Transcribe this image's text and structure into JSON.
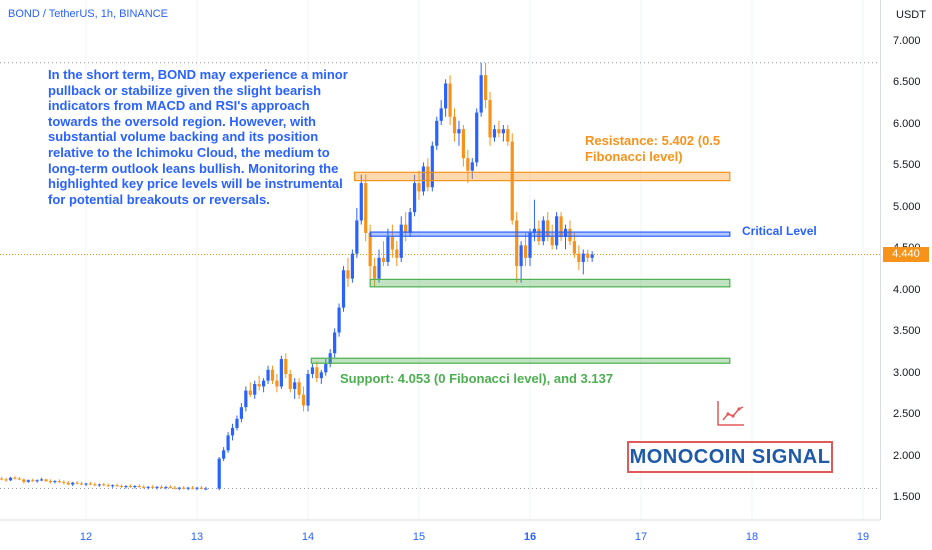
{
  "header": {
    "symbol": "BOND / TetherUS, 1h, BINANCE"
  },
  "commentary": "In the short term, BOND may experience a minor pullback or stabilize given the slight bearish indicators from MACD and RSI's approach towards the oversold region. However, with substantial volume backing and its position relative to the Ichimoku Cloud, the medium to long-term outlook leans bullish. Monitoring the highlighted key price levels will be instrumental for potential breakouts or reversals.",
  "annotations": {
    "resistance": "Resistance: 5.402 (0.5\nFibonacci level)",
    "critical": "Critical Level",
    "support": "Support: 4.053 (0 Fibonacci level), and 3.137"
  },
  "brand": {
    "signal": "MONOCOIN SIGNAL"
  },
  "axis": {
    "currency": "USDT",
    "current_price": "4.440",
    "y_ticks": [
      "7.000",
      "6.500",
      "6.000",
      "5.500",
      "5.000",
      "4.500",
      "4.000",
      "3.500",
      "3.000",
      "2.500",
      "2.000",
      "1.500"
    ],
    "x_ticks": [
      "12",
      "13",
      "14",
      "15",
      "16",
      "17",
      "18",
      "19"
    ]
  },
  "colors": {
    "up": "#2962ff",
    "down": "#f7931a",
    "resistance": "#f7931a",
    "critical": "#2962ff",
    "support": "#4caf50",
    "signal_border": "#e05a5a"
  },
  "chart_data": {
    "type": "candlestick",
    "x_unit": "day",
    "ylim": [
      1.2,
      7.35
    ],
    "xlim": [
      11.2,
      19.3
    ],
    "current_price": 4.44,
    "levels": [
      {
        "kind": "resistance",
        "low": 5.33,
        "high": 5.43,
        "from": 14.42,
        "to": 17.8
      },
      {
        "kind": "critical",
        "low": 4.66,
        "high": 4.71,
        "from": 14.56,
        "to": 17.8
      },
      {
        "kind": "support",
        "low": 4.05,
        "high": 4.14,
        "from": 14.56,
        "to": 17.8
      },
      {
        "kind": "support",
        "low": 3.13,
        "high": 3.19,
        "from": 14.03,
        "to": 17.8
      }
    ],
    "reference_lines": [
      6.75,
      1.62
    ],
    "candles": [
      [
        11.2,
        1.73,
        1.76,
        1.71,
        1.74
      ],
      [
        11.24,
        1.74,
        1.76,
        1.72,
        1.73
      ],
      [
        11.28,
        1.73,
        1.75,
        1.7,
        1.72
      ],
      [
        11.32,
        1.72,
        1.76,
        1.71,
        1.75
      ],
      [
        11.36,
        1.75,
        1.77,
        1.73,
        1.74
      ],
      [
        11.4,
        1.74,
        1.76,
        1.72,
        1.73
      ],
      [
        11.44,
        1.73,
        1.74,
        1.68,
        1.7
      ],
      [
        11.48,
        1.7,
        1.73,
        1.69,
        1.72
      ],
      [
        11.52,
        1.72,
        1.74,
        1.7,
        1.71
      ],
      [
        11.56,
        1.71,
        1.73,
        1.69,
        1.72
      ],
      [
        11.6,
        1.72,
        1.75,
        1.71,
        1.73
      ],
      [
        11.64,
        1.73,
        1.74,
        1.7,
        1.71
      ],
      [
        11.68,
        1.71,
        1.73,
        1.68,
        1.7
      ],
      [
        11.72,
        1.7,
        1.72,
        1.68,
        1.71
      ],
      [
        11.76,
        1.71,
        1.73,
        1.69,
        1.7
      ],
      [
        11.8,
        1.7,
        1.72,
        1.67,
        1.69
      ],
      [
        11.84,
        1.69,
        1.71,
        1.66,
        1.67
      ],
      [
        11.88,
        1.67,
        1.7,
        1.65,
        1.69
      ],
      [
        11.92,
        1.69,
        1.71,
        1.67,
        1.68
      ],
      [
        11.96,
        1.68,
        1.7,
        1.66,
        1.67
      ],
      [
        12.0,
        1.67,
        1.69,
        1.65,
        1.68
      ],
      [
        12.04,
        1.68,
        1.7,
        1.66,
        1.67
      ],
      [
        12.08,
        1.67,
        1.69,
        1.65,
        1.66
      ],
      [
        12.12,
        1.66,
        1.68,
        1.64,
        1.67
      ],
      [
        12.16,
        1.67,
        1.69,
        1.65,
        1.66
      ],
      [
        12.2,
        1.66,
        1.68,
        1.64,
        1.65
      ],
      [
        12.24,
        1.65,
        1.67,
        1.63,
        1.66
      ],
      [
        12.28,
        1.66,
        1.68,
        1.64,
        1.65
      ],
      [
        12.32,
        1.65,
        1.67,
        1.63,
        1.64
      ],
      [
        12.36,
        1.64,
        1.66,
        1.62,
        1.65
      ],
      [
        12.4,
        1.65,
        1.67,
        1.63,
        1.64
      ],
      [
        12.44,
        1.64,
        1.66,
        1.62,
        1.65
      ],
      [
        12.48,
        1.65,
        1.67,
        1.63,
        1.64
      ],
      [
        12.52,
        1.64,
        1.66,
        1.62,
        1.63
      ],
      [
        12.56,
        1.63,
        1.65,
        1.61,
        1.64
      ],
      [
        12.6,
        1.64,
        1.66,
        1.62,
        1.63
      ],
      [
        12.64,
        1.63,
        1.65,
        1.61,
        1.64
      ],
      [
        12.68,
        1.64,
        1.66,
        1.62,
        1.63
      ],
      [
        12.72,
        1.63,
        1.65,
        1.61,
        1.64
      ],
      [
        12.76,
        1.64,
        1.66,
        1.62,
        1.63
      ],
      [
        12.8,
        1.63,
        1.65,
        1.61,
        1.62
      ],
      [
        12.84,
        1.62,
        1.64,
        1.6,
        1.63
      ],
      [
        12.88,
        1.63,
        1.65,
        1.61,
        1.62
      ],
      [
        12.92,
        1.62,
        1.64,
        1.6,
        1.63
      ],
      [
        12.96,
        1.63,
        1.65,
        1.61,
        1.62
      ],
      [
        13.0,
        1.62,
        1.64,
        1.6,
        1.63
      ],
      [
        13.04,
        1.63,
        1.65,
        1.61,
        1.62
      ],
      [
        13.08,
        1.62,
        1.64,
        1.6,
        1.62
      ],
      [
        13.2,
        1.62,
        2.0,
        1.6,
        1.98
      ],
      [
        13.24,
        1.98,
        2.12,
        1.95,
        2.08
      ],
      [
        13.28,
        2.08,
        2.3,
        2.05,
        2.26
      ],
      [
        13.32,
        2.26,
        2.4,
        2.2,
        2.35
      ],
      [
        13.36,
        2.35,
        2.5,
        2.32,
        2.46
      ],
      [
        13.4,
        2.46,
        2.65,
        2.42,
        2.6
      ],
      [
        13.44,
        2.6,
        2.85,
        2.55,
        2.8
      ],
      [
        13.48,
        2.8,
        2.9,
        2.72,
        2.75
      ],
      [
        13.52,
        2.75,
        2.92,
        2.7,
        2.88
      ],
      [
        13.56,
        2.88,
        2.98,
        2.8,
        2.85
      ],
      [
        13.6,
        2.85,
        2.95,
        2.78,
        2.92
      ],
      [
        13.64,
        2.92,
        3.1,
        2.88,
        3.05
      ],
      [
        13.68,
        3.05,
        3.1,
        2.88,
        2.92
      ],
      [
        13.72,
        2.92,
        3.0,
        2.78,
        2.85
      ],
      [
        13.76,
        2.85,
        3.22,
        2.82,
        3.18
      ],
      [
        13.8,
        3.18,
        3.25,
        2.95,
        3.0
      ],
      [
        13.84,
        3.0,
        3.05,
        2.78,
        2.82
      ],
      [
        13.88,
        2.82,
        2.95,
        2.7,
        2.9
      ],
      [
        13.92,
        2.9,
        2.95,
        2.7,
        2.75
      ],
      [
        13.96,
        2.75,
        2.85,
        2.55,
        2.62
      ],
      [
        14.0,
        2.62,
        3.05,
        2.55,
        3.0
      ],
      [
        14.04,
        3.0,
        3.12,
        2.95,
        3.08
      ],
      [
        14.08,
        3.08,
        3.15,
        2.9,
        2.95
      ],
      [
        14.12,
        2.95,
        3.05,
        2.88,
        3.02
      ],
      [
        14.16,
        3.02,
        3.18,
        2.98,
        3.12
      ],
      [
        14.2,
        3.12,
        3.3,
        3.08,
        3.25
      ],
      [
        14.24,
        3.25,
        3.55,
        3.2,
        3.5
      ],
      [
        14.28,
        3.5,
        3.85,
        3.45,
        3.8
      ],
      [
        14.32,
        3.8,
        4.3,
        3.75,
        4.25
      ],
      [
        14.36,
        4.25,
        4.4,
        4.05,
        4.15
      ],
      [
        14.4,
        4.15,
        4.5,
        4.1,
        4.45
      ],
      [
        14.44,
        4.45,
        5.0,
        4.4,
        4.85
      ],
      [
        14.48,
        4.85,
        5.4,
        4.8,
        5.3
      ],
      [
        14.52,
        5.3,
        5.4,
        4.6,
        4.7
      ],
      [
        14.56,
        4.7,
        4.8,
        4.15,
        4.3
      ],
      [
        14.6,
        4.3,
        4.4,
        4.05,
        4.15
      ],
      [
        14.64,
        4.15,
        4.5,
        4.1,
        4.4
      ],
      [
        14.68,
        4.4,
        4.6,
        4.3,
        4.35
      ],
      [
        14.72,
        4.35,
        4.75,
        4.3,
        4.65
      ],
      [
        14.76,
        4.65,
        4.8,
        4.4,
        4.5
      ],
      [
        14.8,
        4.5,
        4.6,
        4.3,
        4.4
      ],
      [
        14.84,
        4.4,
        4.9,
        4.35,
        4.8
      ],
      [
        14.88,
        4.8,
        4.95,
        4.6,
        4.7
      ],
      [
        14.92,
        4.7,
        5.0,
        4.65,
        4.95
      ],
      [
        14.96,
        4.95,
        5.4,
        4.9,
        5.3
      ],
      [
        15.0,
        5.3,
        5.45,
        5.1,
        5.2
      ],
      [
        15.04,
        5.2,
        5.55,
        5.15,
        5.5
      ],
      [
        15.08,
        5.5,
        5.6,
        5.2,
        5.25
      ],
      [
        15.12,
        5.25,
        5.8,
        5.2,
        5.75
      ],
      [
        15.16,
        5.75,
        6.1,
        5.7,
        6.05
      ],
      [
        15.2,
        6.05,
        6.3,
        6.0,
        6.2
      ],
      [
        15.24,
        6.2,
        6.55,
        6.1,
        6.5
      ],
      [
        15.28,
        6.5,
        6.6,
        6.0,
        6.1
      ],
      [
        15.32,
        6.1,
        6.2,
        5.8,
        5.9
      ],
      [
        15.36,
        5.9,
        6.05,
        5.75,
        5.95
      ],
      [
        15.4,
        5.95,
        6.0,
        5.5,
        5.6
      ],
      [
        15.44,
        5.6,
        5.7,
        5.3,
        5.45
      ],
      [
        15.48,
        5.45,
        5.6,
        5.35,
        5.55
      ],
      [
        15.52,
        5.55,
        6.2,
        5.5,
        6.15
      ],
      [
        15.56,
        6.15,
        6.75,
        6.1,
        6.6
      ],
      [
        15.6,
        6.6,
        6.75,
        6.2,
        6.3
      ],
      [
        15.64,
        6.3,
        6.4,
        5.75,
        5.85
      ],
      [
        15.68,
        5.85,
        6.0,
        5.8,
        5.95
      ],
      [
        15.72,
        5.95,
        6.05,
        5.85,
        5.9
      ],
      [
        15.76,
        5.9,
        6.0,
        5.8,
        5.95
      ],
      [
        15.8,
        5.95,
        6.0,
        5.75,
        5.8
      ],
      [
        15.84,
        5.8,
        5.9,
        4.8,
        4.85
      ],
      [
        15.88,
        4.85,
        4.95,
        4.1,
        4.3
      ],
      [
        15.92,
        4.3,
        4.6,
        4.1,
        4.55
      ],
      [
        15.96,
        4.55,
        4.7,
        4.3,
        4.4
      ],
      [
        16.0,
        4.4,
        4.75,
        4.3,
        4.7
      ],
      [
        16.04,
        4.7,
        5.1,
        4.6,
        4.75
      ],
      [
        16.08,
        4.75,
        4.85,
        4.55,
        4.6
      ],
      [
        16.12,
        4.6,
        4.9,
        4.55,
        4.85
      ],
      [
        16.16,
        4.85,
        4.95,
        4.6,
        4.65
      ],
      [
        16.2,
        4.65,
        4.8,
        4.5,
        4.55
      ],
      [
        16.24,
        4.55,
        4.95,
        4.5,
        4.9
      ],
      [
        16.28,
        4.9,
        4.95,
        4.6,
        4.65
      ],
      [
        16.32,
        4.65,
        4.8,
        4.5,
        4.75
      ],
      [
        16.36,
        4.75,
        4.85,
        4.55,
        4.6
      ],
      [
        16.4,
        4.6,
        4.7,
        4.4,
        4.45
      ],
      [
        16.44,
        4.45,
        4.55,
        4.25,
        4.35
      ],
      [
        16.48,
        4.35,
        4.5,
        4.2,
        4.45
      ],
      [
        16.52,
        4.45,
        4.5,
        4.35,
        4.4
      ],
      [
        16.56,
        4.4,
        4.48,
        4.35,
        4.44
      ]
    ]
  }
}
